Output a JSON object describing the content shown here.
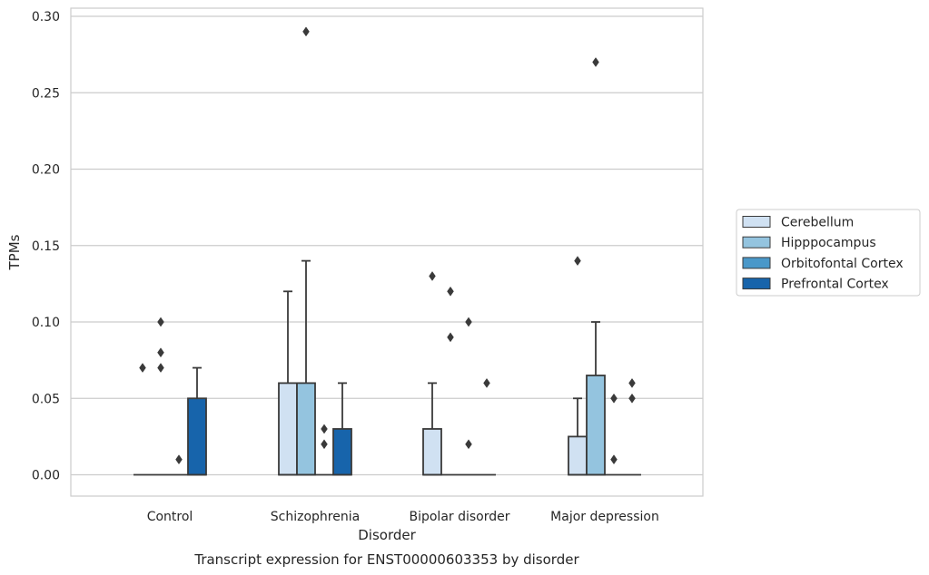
{
  "chart_data": {
    "type": "box",
    "title": "",
    "caption": "Transcript expression for ENST00000603353 by disorder",
    "xlabel": "Disorder",
    "ylabel": "TPMs",
    "ylim": [
      -0.014,
      0.303
    ],
    "yticks": [
      "0.00",
      "0.05",
      "0.10",
      "0.15",
      "0.20",
      "0.25",
      "0.30"
    ],
    "ytick_values": [
      0,
      0.05,
      0.1,
      0.15,
      0.2,
      0.25,
      0.3
    ],
    "grid": "horizontal",
    "legend_position": "right",
    "categories": [
      "Control",
      "Schizophrenia",
      "Bipolar disorder",
      "Major depression"
    ],
    "series": [
      {
        "name": "Cerebellum",
        "color": "#d0e1f2",
        "boxes": [
          {
            "q1": 0,
            "median": 0,
            "q3": 0,
            "whislo": 0,
            "whishi": 0,
            "fliers": [
              0.07
            ]
          },
          {
            "q1": 0,
            "median": 0,
            "q3": 0.06,
            "whislo": 0,
            "whishi": 0.12,
            "fliers": []
          },
          {
            "q1": 0,
            "median": 0,
            "q3": 0.03,
            "whislo": 0,
            "whishi": 0.06,
            "fliers": [
              0.13
            ]
          },
          {
            "q1": 0,
            "median": 0,
            "q3": 0.025,
            "whislo": 0,
            "whishi": 0.05,
            "fliers": [
              0.14
            ]
          }
        ]
      },
      {
        "name": "Hipppocampus",
        "color": "#94c4df",
        "boxes": [
          {
            "q1": 0,
            "median": 0,
            "q3": 0,
            "whislo": 0,
            "whishi": 0,
            "fliers": [
              0.07,
              0.08,
              0.1
            ]
          },
          {
            "q1": 0,
            "median": 0,
            "q3": 0.06,
            "whislo": 0,
            "whishi": 0.14,
            "fliers": [
              0.29
            ]
          },
          {
            "q1": 0,
            "median": 0,
            "q3": 0,
            "whislo": 0,
            "whishi": 0,
            "fliers": [
              0.09,
              0.12
            ]
          },
          {
            "q1": 0,
            "median": 0,
            "q3": 0.065,
            "whislo": 0,
            "whishi": 0.1,
            "fliers": [
              0.27
            ]
          }
        ]
      },
      {
        "name": "Orbitofontal Cortex",
        "color": "#4a98c9",
        "boxes": [
          {
            "q1": 0,
            "median": 0,
            "q3": 0,
            "whislo": 0,
            "whishi": 0,
            "fliers": [
              0.01
            ]
          },
          {
            "q1": 0,
            "median": 0,
            "q3": 0,
            "whislo": 0,
            "whishi": 0,
            "fliers": [
              0.02,
              0.03
            ]
          },
          {
            "q1": 0,
            "median": 0,
            "q3": 0,
            "whislo": 0,
            "whishi": 0,
            "fliers": [
              0.02,
              0.1
            ]
          },
          {
            "q1": 0,
            "median": 0,
            "q3": 0,
            "whislo": 0,
            "whishi": 0,
            "fliers": [
              0.01,
              0.05
            ]
          }
        ]
      },
      {
        "name": "Prefrontal Cortex",
        "color": "#1764ab",
        "boxes": [
          {
            "q1": 0,
            "median": 0,
            "q3": 0.05,
            "whislo": 0,
            "whishi": 0.07,
            "fliers": []
          },
          {
            "q1": 0,
            "median": 0,
            "q3": 0.03,
            "whislo": 0,
            "whishi": 0.06,
            "fliers": []
          },
          {
            "q1": 0,
            "median": 0,
            "q3": 0,
            "whislo": 0,
            "whishi": 0,
            "fliers": [
              0.06
            ]
          },
          {
            "q1": 0,
            "median": 0,
            "q3": 0,
            "whislo": 0,
            "whishi": 0,
            "fliers": [
              0.05,
              0.06
            ]
          }
        ]
      }
    ],
    "colors": {
      "edge": "#3a3a3a",
      "grid": "#cccccc",
      "frame": "#cccccc",
      "text": "#262626"
    }
  }
}
